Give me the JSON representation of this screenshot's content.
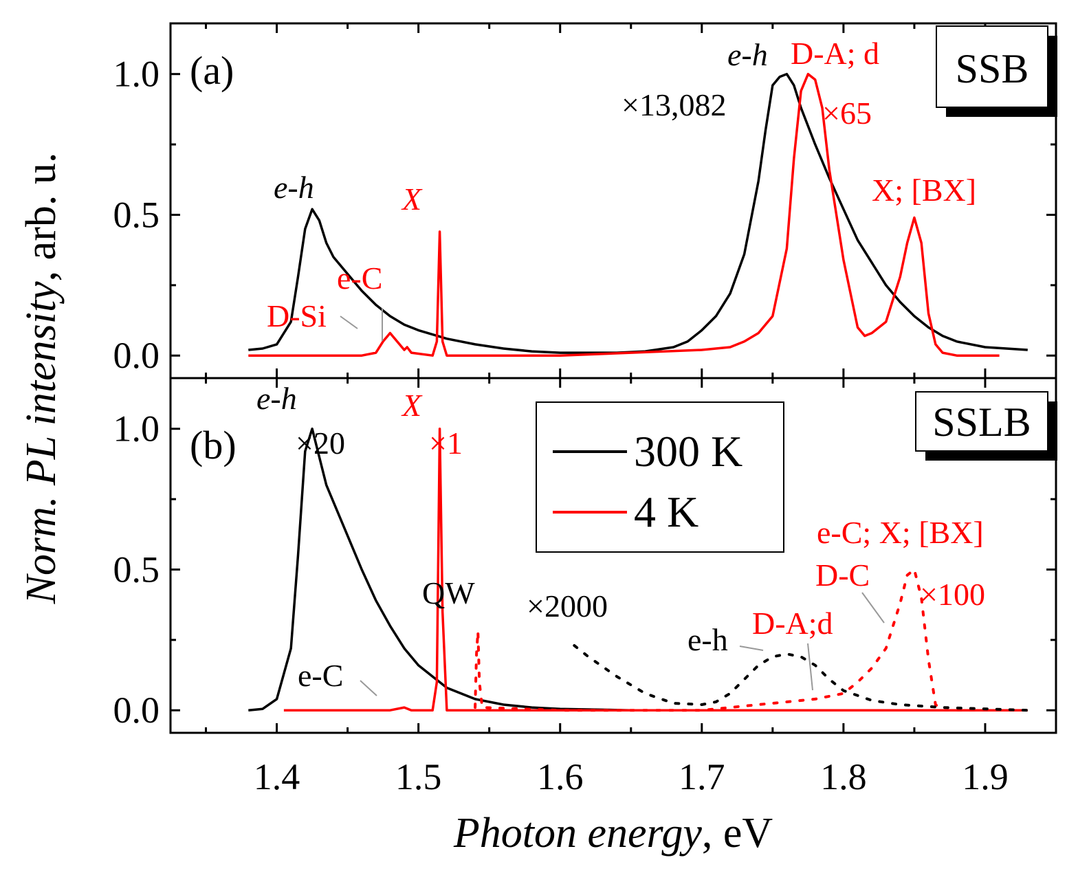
{
  "chart_data": [
    {
      "type": "line",
      "panel_label": "(a)",
      "sample_label": "SSB",
      "xlim": [
        1.325,
        1.95
      ],
      "ylim": [
        -0.08,
        1.18
      ],
      "xticks": [
        "1.4",
        "1.5",
        "1.6",
        "1.7",
        "1.8",
        "1.9"
      ],
      "yticks": [
        "0.0",
        "0.5",
        "1.0"
      ],
      "series": [
        {
          "name": "300 K",
          "color": "#000000",
          "dash": false,
          "points": [
            [
              1.38,
              0.02
            ],
            [
              1.39,
              0.025
            ],
            [
              1.4,
              0.04
            ],
            [
              1.41,
              0.12
            ],
            [
              1.415,
              0.28
            ],
            [
              1.42,
              0.45
            ],
            [
              1.425,
              0.52
            ],
            [
              1.43,
              0.48
            ],
            [
              1.435,
              0.4
            ],
            [
              1.44,
              0.35
            ],
            [
              1.45,
              0.29
            ],
            [
              1.46,
              0.23
            ],
            [
              1.47,
              0.18
            ],
            [
              1.48,
              0.14
            ],
            [
              1.49,
              0.11
            ],
            [
              1.5,
              0.09
            ],
            [
              1.52,
              0.06
            ],
            [
              1.54,
              0.04
            ],
            [
              1.56,
              0.025
            ],
            [
              1.58,
              0.015
            ],
            [
              1.6,
              0.01
            ],
            [
              1.62,
              0.01
            ],
            [
              1.64,
              0.01
            ],
            [
              1.66,
              0.015
            ],
            [
              1.68,
              0.03
            ],
            [
              1.69,
              0.05
            ],
            [
              1.7,
              0.09
            ],
            [
              1.71,
              0.14
            ],
            [
              1.72,
              0.22
            ],
            [
              1.73,
              0.36
            ],
            [
              1.74,
              0.62
            ],
            [
              1.745,
              0.8
            ],
            [
              1.75,
              0.96
            ],
            [
              1.755,
              0.99
            ],
            [
              1.76,
              1.0
            ],
            [
              1.765,
              0.96
            ],
            [
              1.77,
              0.88
            ],
            [
              1.78,
              0.75
            ],
            [
              1.79,
              0.63
            ],
            [
              1.8,
              0.52
            ],
            [
              1.81,
              0.41
            ],
            [
              1.82,
              0.33
            ],
            [
              1.83,
              0.25
            ],
            [
              1.84,
              0.19
            ],
            [
              1.85,
              0.14
            ],
            [
              1.86,
              0.1
            ],
            [
              1.87,
              0.07
            ],
            [
              1.88,
              0.05
            ],
            [
              1.9,
              0.03
            ],
            [
              1.93,
              0.02
            ]
          ]
        },
        {
          "name": "4 K",
          "color": "#ff0000",
          "dash": false,
          "points": [
            [
              1.38,
              0.0
            ],
            [
              1.4,
              0.0
            ],
            [
              1.46,
              0.0
            ],
            [
              1.47,
              0.01
            ],
            [
              1.475,
              0.05
            ],
            [
              1.48,
              0.08
            ],
            [
              1.485,
              0.05
            ],
            [
              1.49,
              0.02
            ],
            [
              1.492,
              0.03
            ],
            [
              1.495,
              0.01
            ],
            [
              1.51,
              0.0
            ],
            [
              1.513,
              0.05
            ],
            [
              1.515,
              0.44
            ],
            [
              1.517,
              0.05
            ],
            [
              1.52,
              0.0
            ],
            [
              1.6,
              0.0
            ],
            [
              1.65,
              0.01
            ],
            [
              1.7,
              0.02
            ],
            [
              1.72,
              0.03
            ],
            [
              1.73,
              0.05
            ],
            [
              1.74,
              0.08
            ],
            [
              1.75,
              0.14
            ],
            [
              1.76,
              0.38
            ],
            [
              1.765,
              0.7
            ],
            [
              1.77,
              0.94
            ],
            [
              1.775,
              1.0
            ],
            [
              1.78,
              0.98
            ],
            [
              1.785,
              0.88
            ],
            [
              1.79,
              0.66
            ],
            [
              1.8,
              0.34
            ],
            [
              1.81,
              0.1
            ],
            [
              1.815,
              0.07
            ],
            [
              1.82,
              0.08
            ],
            [
              1.83,
              0.12
            ],
            [
              1.835,
              0.2
            ],
            [
              1.84,
              0.28
            ],
            [
              1.845,
              0.4
            ],
            [
              1.85,
              0.49
            ],
            [
              1.855,
              0.4
            ],
            [
              1.86,
              0.15
            ],
            [
              1.865,
              0.04
            ],
            [
              1.87,
              0.01
            ],
            [
              1.88,
              0.0
            ],
            [
              1.91,
              0.0
            ]
          ]
        }
      ],
      "annotations": [
        {
          "text": "e-h",
          "color": "#000000"
        },
        {
          "text": "e-C",
          "color": "#ff0000"
        },
        {
          "text": "D-Si",
          "color": "#ff0000"
        },
        {
          "text": "X",
          "color": "#ff0000"
        },
        {
          "text": "e-h",
          "color": "#000000"
        },
        {
          "text": "×13,082",
          "color": "#000000"
        },
        {
          "text": "D-A; d",
          "color": "#ff0000"
        },
        {
          "text": "×65",
          "color": "#ff0000"
        },
        {
          "text": "X; [BX]",
          "color": "#ff0000"
        }
      ]
    },
    {
      "type": "line",
      "panel_label": "(b)",
      "sample_label": "SSLB",
      "xlim": [
        1.325,
        1.95
      ],
      "ylim": [
        -0.08,
        1.18
      ],
      "xticks": [
        "1.4",
        "1.5",
        "1.6",
        "1.7",
        "1.8",
        "1.9"
      ],
      "yticks": [
        "0.0",
        "0.5",
        "1.0"
      ],
      "series": [
        {
          "name": "300 K",
          "color": "#000000",
          "dash": false,
          "points": [
            [
              1.38,
              0.0
            ],
            [
              1.39,
              0.005
            ],
            [
              1.4,
              0.04
            ],
            [
              1.41,
              0.22
            ],
            [
              1.415,
              0.55
            ],
            [
              1.42,
              0.92
            ],
            [
              1.425,
              1.0
            ],
            [
              1.43,
              0.9
            ],
            [
              1.435,
              0.8
            ],
            [
              1.44,
              0.74
            ],
            [
              1.45,
              0.62
            ],
            [
              1.46,
              0.5
            ],
            [
              1.47,
              0.39
            ],
            [
              1.48,
              0.3
            ],
            [
              1.49,
              0.22
            ],
            [
              1.5,
              0.16
            ],
            [
              1.52,
              0.08
            ],
            [
              1.54,
              0.04
            ],
            [
              1.56,
              0.02
            ],
            [
              1.58,
              0.01
            ],
            [
              1.6,
              0.005
            ],
            [
              1.65,
              0.0
            ],
            [
              1.93,
              0.0
            ]
          ]
        },
        {
          "name": "4 K",
          "color": "#ff0000",
          "dash": false,
          "points": [
            [
              1.405,
              0.0
            ],
            [
              1.48,
              0.0
            ],
            [
              1.49,
              0.01
            ],
            [
              1.495,
              0.0
            ],
            [
              1.51,
              0.0
            ],
            [
              1.513,
              0.1
            ],
            [
              1.515,
              1.0
            ],
            [
              1.517,
              0.35
            ],
            [
              1.52,
              0.0
            ],
            [
              1.93,
              0.0
            ]
          ]
        },
        {
          "name": "",
          "color": "#ff0000",
          "dash": true,
          "points": [
            [
              1.54,
              0.01
            ],
            [
              1.541,
              0.2
            ],
            [
              1.542,
              0.28
            ],
            [
              1.543,
              0.1
            ],
            [
              1.545,
              0.01
            ],
            [
              1.6,
              0.0
            ],
            [
              1.7,
              0.0
            ],
            [
              1.72,
              0.01
            ],
            [
              1.74,
              0.02
            ],
            [
              1.76,
              0.03
            ],
            [
              1.78,
              0.04
            ],
            [
              1.8,
              0.06
            ],
            [
              1.81,
              0.1
            ],
            [
              1.82,
              0.15
            ],
            [
              1.83,
              0.22
            ],
            [
              1.84,
              0.38
            ],
            [
              1.845,
              0.48
            ],
            [
              1.85,
              0.5
            ],
            [
              1.855,
              0.4
            ],
            [
              1.86,
              0.18
            ],
            [
              1.865,
              0.02
            ],
            [
              1.87,
              0.0
            ]
          ]
        },
        {
          "name": "",
          "color": "#000000",
          "dash": true,
          "points": [
            [
              1.61,
              0.23
            ],
            [
              1.62,
              0.19
            ],
            [
              1.64,
              0.12
            ],
            [
              1.66,
              0.06
            ],
            [
              1.68,
              0.025
            ],
            [
              1.7,
              0.02
            ],
            [
              1.71,
              0.03
            ],
            [
              1.72,
              0.06
            ],
            [
              1.73,
              0.11
            ],
            [
              1.74,
              0.16
            ],
            [
              1.75,
              0.19
            ],
            [
              1.76,
              0.2
            ],
            [
              1.77,
              0.19
            ],
            [
              1.78,
              0.16
            ],
            [
              1.79,
              0.11
            ],
            [
              1.8,
              0.07
            ],
            [
              1.82,
              0.035
            ],
            [
              1.84,
              0.02
            ],
            [
              1.87,
              0.01
            ],
            [
              1.93,
              0.0
            ]
          ]
        }
      ],
      "annotations": [
        {
          "text": "e-h",
          "color": "#000000"
        },
        {
          "text": "×20",
          "color": "#000000"
        },
        {
          "text": "X",
          "color": "#ff0000"
        },
        {
          "text": "×1",
          "color": "#ff0000"
        },
        {
          "text": "e-C",
          "color": "#000000"
        },
        {
          "text": "QW",
          "color": "#000000"
        },
        {
          "text": "×2000",
          "color": "#000000"
        },
        {
          "text": "e-h",
          "color": "#000000"
        },
        {
          "text": "D-A;d",
          "color": "#ff0000"
        },
        {
          "text": "D-C",
          "color": "#ff0000"
        },
        {
          "text": "e-C; X; [BX]",
          "color": "#ff0000"
        },
        {
          "text": "×100",
          "color": "#ff0000"
        }
      ],
      "legend": [
        {
          "label": "300 K",
          "color": "#000000"
        },
        {
          "label": "4 K",
          "color": "#ff0000"
        }
      ]
    }
  ],
  "axes": {
    "xlabel_italic": "Photon energy",
    "xlabel_unit": ", eV",
    "ylabel_italic": "Norm. PL intensity",
    "ylabel_unit": ", arb. u."
  }
}
